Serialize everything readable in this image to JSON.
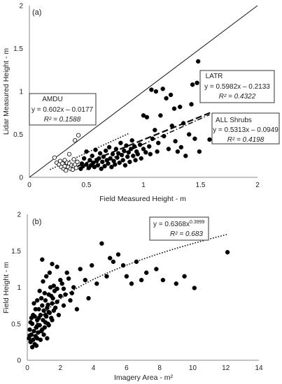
{
  "chart_data": [
    {
      "type": "scatter",
      "panel_label": "(a)",
      "xlabel": "Field Measured Height - m",
      "ylabel": "Lidar Measured Height - m",
      "xlim": [
        0,
        2
      ],
      "ylim": [
        0,
        2
      ],
      "xticks": [
        "0",
        "0.5",
        "1",
        "1.5",
        "2"
      ],
      "yticks": [
        "0",
        "0.5",
        "1",
        "1.5",
        "2"
      ],
      "grid": false,
      "reference_line": {
        "style": "solid",
        "x": [
          0,
          2
        ],
        "y": [
          0,
          2
        ]
      },
      "series": [
        {
          "marker": "open-circle",
          "points": [
            [
              0.22,
              0.23
            ],
            [
              0.24,
              0.17
            ],
            [
              0.26,
              0.15
            ],
            [
              0.27,
              0.19
            ],
            [
              0.28,
              0.12
            ],
            [
              0.29,
              0.16
            ],
            [
              0.3,
              0.1
            ],
            [
              0.31,
              0.13
            ],
            [
              0.31,
              0.2
            ],
            [
              0.32,
              0.08
            ],
            [
              0.33,
              0.17
            ],
            [
              0.34,
              0.12
            ],
            [
              0.35,
              0.16
            ],
            [
              0.35,
              0.27
            ],
            [
              0.36,
              0.1
            ],
            [
              0.37,
              0.14
            ],
            [
              0.38,
              0.09
            ],
            [
              0.39,
              0.13
            ],
            [
              0.39,
              0.21
            ],
            [
              0.4,
              0.15
            ],
            [
              0.4,
              0.43
            ],
            [
              0.41,
              0.11
            ],
            [
              0.42,
              0.18
            ],
            [
              0.43,
              0.49
            ]
          ]
        },
        {
          "marker": "filled-circle",
          "points": [
            [
              0.45,
              0.1
            ],
            [
              0.46,
              0.16
            ],
            [
              0.47,
              0.13
            ],
            [
              0.48,
              0.22
            ],
            [
              0.5,
              0.15
            ],
            [
              0.5,
              0.3
            ],
            [
              0.52,
              0.11
            ],
            [
              0.53,
              0.2
            ],
            [
              0.54,
              0.14
            ],
            [
              0.55,
              0.25
            ],
            [
              0.56,
              0.17
            ],
            [
              0.57,
              0.12
            ],
            [
              0.58,
              0.32
            ],
            [
              0.59,
              0.19
            ],
            [
              0.6,
              0.14
            ],
            [
              0.61,
              0.22
            ],
            [
              0.62,
              0.28
            ],
            [
              0.63,
              0.1
            ],
            [
              0.64,
              0.18
            ],
            [
              0.65,
              0.24
            ],
            [
              0.66,
              0.13
            ],
            [
              0.67,
              0.31
            ],
            [
              0.68,
              0.2
            ],
            [
              0.69,
              0.16
            ],
            [
              0.7,
              0.35
            ],
            [
              0.71,
              0.22
            ],
            [
              0.72,
              0.12
            ],
            [
              0.73,
              0.27
            ],
            [
              0.74,
              0.19
            ],
            [
              0.75,
              0.15
            ],
            [
              0.76,
              0.33
            ],
            [
              0.77,
              0.23
            ],
            [
              0.78,
              0.28
            ],
            [
              0.79,
              0.17
            ],
            [
              0.8,
              0.4
            ],
            [
              0.81,
              0.26
            ],
            [
              0.82,
              0.2
            ],
            [
              0.83,
              0.31
            ],
            [
              0.84,
              0.14
            ],
            [
              0.85,
              0.37
            ],
            [
              0.86,
              0.24
            ],
            [
              0.87,
              0.29
            ],
            [
              0.88,
              0.18
            ],
            [
              0.89,
              0.33
            ],
            [
              0.9,
              0.43
            ],
            [
              0.91,
              0.25
            ],
            [
              0.92,
              0.36
            ],
            [
              0.93,
              0.2
            ],
            [
              0.94,
              0.3
            ],
            [
              0.95,
              0.27
            ],
            [
              0.97,
              0.38
            ],
            [
              0.98,
              0.22
            ],
            [
              1.0,
              0.33
            ],
            [
              1.0,
              0.72
            ],
            [
              1.02,
              0.29
            ],
            [
              1.03,
              0.7
            ],
            [
              1.05,
              0.36
            ],
            [
              1.06,
              0.27
            ],
            [
              1.07,
              1.02
            ],
            [
              1.08,
              0.45
            ],
            [
              1.1,
              0.55
            ],
            [
              1.11,
              1.0
            ],
            [
              1.12,
              0.3
            ],
            [
              1.13,
              0.4
            ],
            [
              1.15,
              0.72
            ],
            [
              1.17,
              1.03
            ],
            [
              1.18,
              0.48
            ],
            [
              1.2,
              0.92
            ],
            [
              1.22,
              0.33
            ],
            [
              1.24,
              0.96
            ],
            [
              1.25,
              0.6
            ],
            [
              1.27,
              0.8
            ],
            [
              1.28,
              0.42
            ],
            [
              1.3,
              0.3
            ],
            [
              1.32,
              0.82
            ],
            [
              1.33,
              0.35
            ],
            [
              1.35,
              0.63
            ],
            [
              1.37,
              0.25
            ],
            [
              1.4,
              0.5
            ],
            [
              1.42,
              0.85
            ],
            [
              1.43,
              1.08
            ],
            [
              1.45,
              0.45
            ],
            [
              1.47,
              1.1
            ],
            [
              1.48,
              1.35
            ],
            [
              1.49,
              0.3
            ],
            [
              1.58,
              0.44
            ]
          ]
        }
      ],
      "annotations": [
        {
          "label": "AMDU",
          "equation": "y = 0.602x – 0.0177",
          "r2": "R² = 0.1588",
          "trend": {
            "style": "dotted",
            "x": [
              0.18,
              0.87
            ],
            "y": [
              0.09,
              0.51
            ]
          }
        },
        {
          "label": "LATR",
          "equation": "y = 0.5982x – 0.2133",
          "r2": "R² = 0.4322",
          "trend": {
            "style": "dash-dot",
            "x": [
              0.5,
              1.58
            ],
            "y": [
              0.09,
              0.73
            ]
          }
        },
        {
          "label": "ALL Shrubs",
          "equation": "y = 0.5313x – 0.0949",
          "r2": "R² = 0.4198",
          "trend": {
            "style": "long-dash",
            "x": [
              0.35,
              1.6
            ],
            "y": [
              0.09,
              0.76
            ]
          }
        }
      ]
    },
    {
      "type": "scatter",
      "panel_label": "(b)",
      "xlabel": "Imagery Area - m²",
      "ylabel": "Field Height - m",
      "xlim": [
        0,
        14
      ],
      "ylim": [
        0,
        2
      ],
      "xticks": [
        "0",
        "2",
        "4",
        "6",
        "8",
        "10",
        "12",
        "14"
      ],
      "yticks": [
        "0",
        "0.5",
        "1",
        "1.5",
        "2"
      ],
      "grid": false,
      "series": [
        {
          "marker": "filled-circle",
          "points": [
            [
              0.1,
              0.3
            ],
            [
              0.15,
              0.42
            ],
            [
              0.2,
              0.25
            ],
            [
              0.25,
              0.35
            ],
            [
              0.3,
              0.5
            ],
            [
              0.35,
              0.28
            ],
            [
              0.4,
              0.4
            ],
            [
              0.45,
              0.6
            ],
            [
              0.5,
              0.33
            ],
            [
              0.55,
              0.45
            ],
            [
              0.6,
              0.55
            ],
            [
              0.65,
              0.38
            ],
            [
              0.7,
              0.7
            ],
            [
              0.75,
              0.48
            ],
            [
              0.8,
              0.62
            ],
            [
              0.85,
              0.4
            ],
            [
              0.9,
              0.75
            ],
            [
              0.95,
              0.55
            ],
            [
              1.0,
              0.68
            ],
            [
              1.05,
              0.45
            ],
            [
              1.1,
              0.82
            ],
            [
              1.15,
              0.6
            ],
            [
              1.2,
              0.72
            ],
            [
              1.25,
              0.5
            ],
            [
              1.3,
              0.9
            ],
            [
              1.35,
              0.65
            ],
            [
              1.4,
              1.0
            ],
            [
              1.45,
              0.58
            ],
            [
              1.5,
              0.78
            ],
            [
              1.55,
              0.85
            ],
            [
              1.6,
              0.68
            ],
            [
              1.65,
              0.95
            ],
            [
              1.7,
              0.72
            ],
            [
              1.8,
              0.8
            ],
            [
              1.9,
              0.62
            ],
            [
              2.0,
              0.88
            ],
            [
              2.1,
              1.05
            ],
            [
              2.2,
              0.75
            ],
            [
              2.3,
              0.9
            ],
            [
              2.4,
              1.2
            ],
            [
              2.6,
              0.82
            ],
            [
              2.8,
              1.0
            ],
            [
              3.0,
              0.7
            ],
            [
              3.2,
              1.25
            ],
            [
              3.5,
              1.1
            ],
            [
              3.7,
              0.85
            ],
            [
              3.9,
              1.3
            ],
            [
              4.2,
              1.05
            ],
            [
              4.5,
              1.6
            ],
            [
              4.8,
              1.15
            ],
            [
              5.0,
              1.4
            ],
            [
              5.2,
              1.35
            ],
            [
              5.5,
              1.45
            ],
            [
              5.8,
              1.3
            ],
            [
              6.0,
              1.15
            ],
            [
              6.3,
              1.05
            ],
            [
              6.6,
              1.35
            ],
            [
              6.9,
              1.1
            ],
            [
              7.2,
              1.2
            ],
            [
              7.8,
              1.25
            ],
            [
              8.2,
              1.1
            ],
            [
              9.0,
              1.05
            ],
            [
              9.5,
              1.15
            ],
            [
              10.1,
              0.99
            ],
            [
              12.1,
              1.48
            ],
            [
              0.55,
              0.2
            ],
            [
              0.8,
              0.28
            ],
            [
              1.0,
              0.35
            ],
            [
              1.2,
              0.3
            ],
            [
              0.3,
              0.18
            ],
            [
              0.45,
              0.22
            ],
            [
              0.6,
              0.3
            ],
            [
              0.9,
              0.42
            ],
            [
              1.1,
              0.52
            ],
            [
              1.3,
              0.48
            ],
            [
              1.5,
              0.55
            ],
            [
              0.2,
              0.52
            ],
            [
              0.35,
              0.62
            ],
            [
              0.5,
              0.7
            ],
            [
              0.7,
              0.58
            ],
            [
              0.85,
              0.85
            ],
            [
              1.05,
              0.92
            ],
            [
              1.25,
              0.76
            ],
            [
              1.45,
              0.88
            ],
            [
              1.6,
              1.02
            ],
            [
              1.8,
              0.98
            ],
            [
              2.0,
              1.1
            ],
            [
              2.2,
              0.98
            ],
            [
              2.5,
              1.12
            ],
            [
              2.7,
              0.92
            ],
            [
              0.4,
              0.78
            ],
            [
              0.6,
              0.82
            ],
            [
              0.75,
              0.95
            ],
            [
              0.95,
              1.08
            ],
            [
              1.15,
              1.15
            ],
            [
              1.35,
              1.2
            ],
            [
              0.9,
              1.38
            ],
            [
              1.5,
              1.32
            ],
            [
              1.8,
              1.28
            ],
            [
              1.1,
              0.62
            ],
            [
              1.3,
              0.66
            ],
            [
              0.65,
              0.48
            ],
            [
              0.25,
              0.58
            ],
            [
              0.15,
              0.34
            ]
          ]
        }
      ],
      "annotations": [
        {
          "equation": "y = 0.6368x",
          "exponent": "0.3999",
          "r2": "R² = 0.683",
          "trend": {
            "style": "dotted",
            "a": 0.6368,
            "b": 0.3999,
            "x": [
              0.4,
              12.1
            ]
          }
        }
      ]
    }
  ]
}
